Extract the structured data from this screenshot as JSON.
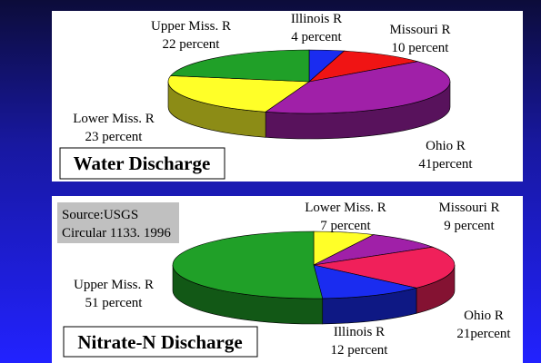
{
  "chart_data": [
    {
      "type": "pie3d",
      "title": "Water Discharge",
      "categories": [
        "Illinois R",
        "Missouri R",
        "Ohio R",
        "Lower Miss. R",
        "Upper Miss. R"
      ],
      "values": [
        4,
        10,
        41,
        23,
        22
      ],
      "value_labels": [
        "4 percent",
        "10 percent",
        "41percent",
        "23 percent",
        "22 percent"
      ],
      "colors": [
        "#1a2cf0",
        "#f01414",
        "#a020a8",
        "#ffff28",
        "#20a028"
      ]
    },
    {
      "type": "pie3d",
      "title": "Nitrate-N Discharge",
      "annotation": [
        "Source:USGS",
        "Circular 1133. 1996"
      ],
      "categories": [
        "Lower Miss. R",
        "Missouri R",
        "Ohio R",
        "Illinois R",
        "Upper Miss. R"
      ],
      "values": [
        7,
        9,
        21,
        12,
        51
      ],
      "value_labels": [
        "7 percent",
        "9 percent",
        "21percent",
        "12 percent",
        "51 percent"
      ],
      "colors": [
        "#ffff28",
        "#a020a8",
        "#f0205a",
        "#1a2cf0",
        "#20a028"
      ]
    }
  ]
}
